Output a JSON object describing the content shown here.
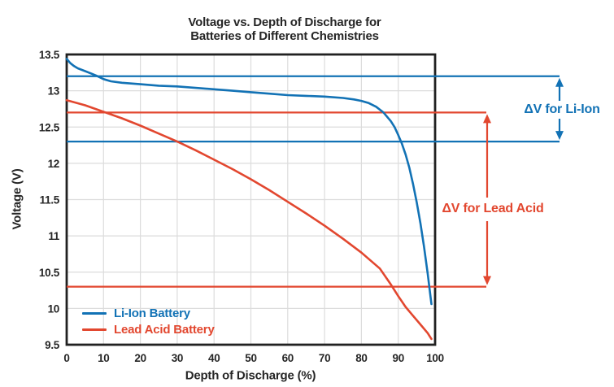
{
  "header": {
    "title_line1": "Voltage vs. Depth of Discharge for",
    "title_line2": "Batteries of Different Chemistries"
  },
  "colors": {
    "li_ion_blue": "#1272B5",
    "lead_acid_red": "#E2472F",
    "grid": "#DCDCDC",
    "axis": "#212121",
    "text": "#262626"
  },
  "chart_data": {
    "type": "line",
    "title": "Voltage vs. Depth of Discharge for Batteries of Different Chemistries",
    "xlabel": "Depth of Discharge (%)",
    "ylabel": "Voltage (V)",
    "xlim": [
      0,
      100
    ],
    "ylim": [
      9.5,
      13.5
    ],
    "xticks": [
      0,
      10,
      20,
      30,
      40,
      50,
      60,
      70,
      80,
      90,
      100
    ],
    "yticks": [
      9.5,
      10,
      10.5,
      11,
      11.5,
      12,
      12.5,
      13,
      13.5
    ],
    "grid": true,
    "legend_position": "lower-left",
    "series": [
      {
        "name": "Li-Ion Battery",
        "color": "#1272B5",
        "points": [
          [
            0,
            13.44
          ],
          [
            1,
            13.38
          ],
          [
            2,
            13.34
          ],
          [
            3,
            13.31
          ],
          [
            5,
            13.27
          ],
          [
            7,
            13.23
          ],
          [
            8,
            13.21
          ],
          [
            10,
            13.16
          ],
          [
            12,
            13.13
          ],
          [
            15,
            13.11
          ],
          [
            20,
            13.09
          ],
          [
            25,
            13.07
          ],
          [
            30,
            13.06
          ],
          [
            35,
            13.04
          ],
          [
            40,
            13.02
          ],
          [
            45,
            13.0
          ],
          [
            50,
            12.98
          ],
          [
            55,
            12.96
          ],
          [
            60,
            12.94
          ],
          [
            65,
            12.93
          ],
          [
            70,
            12.92
          ],
          [
            75,
            12.9
          ],
          [
            78,
            12.88
          ],
          [
            80,
            12.86
          ],
          [
            82,
            12.83
          ],
          [
            84,
            12.78
          ],
          [
            86,
            12.7
          ],
          [
            88,
            12.58
          ],
          [
            89,
            12.5
          ],
          [
            90,
            12.39
          ],
          [
            91,
            12.27
          ],
          [
            92,
            12.12
          ],
          [
            93,
            11.94
          ],
          [
            94,
            11.72
          ],
          [
            95,
            11.47
          ],
          [
            96,
            11.18
          ],
          [
            97,
            10.85
          ],
          [
            98,
            10.48
          ],
          [
            99,
            10.06
          ]
        ]
      },
      {
        "name": "Lead Acid Battery",
        "color": "#E2472F",
        "points": [
          [
            0,
            12.87
          ],
          [
            5,
            12.8
          ],
          [
            10,
            12.71
          ],
          [
            15,
            12.62
          ],
          [
            20,
            12.52
          ],
          [
            25,
            12.41
          ],
          [
            30,
            12.3
          ],
          [
            35,
            12.18
          ],
          [
            40,
            12.05
          ],
          [
            45,
            11.92
          ],
          [
            50,
            11.78
          ],
          [
            55,
            11.63
          ],
          [
            60,
            11.47
          ],
          [
            65,
            11.31
          ],
          [
            70,
            11.14
          ],
          [
            75,
            10.96
          ],
          [
            80,
            10.77
          ],
          [
            85,
            10.55
          ],
          [
            88,
            10.33
          ],
          [
            90,
            10.17
          ],
          [
            92,
            10.02
          ],
          [
            94,
            9.9
          ],
          [
            96,
            9.78
          ],
          [
            98,
            9.66
          ],
          [
            99,
            9.58
          ]
        ]
      }
    ],
    "reference_lines": [
      {
        "id": "li-ion-upper",
        "value": 13.2,
        "color": "#1272B5"
      },
      {
        "id": "li-ion-lower",
        "value": 12.3,
        "color": "#1272B5"
      },
      {
        "id": "lead-acid-upper",
        "value": 12.7,
        "color": "#E2472F"
      },
      {
        "id": "lead-acid-lower",
        "value": 10.3,
        "color": "#E2472F"
      }
    ],
    "annotations": [
      {
        "text": "ΔV for Li-Ion",
        "color": "#1272B5",
        "upper": 13.2,
        "lower": 12.3
      },
      {
        "text": "ΔV for Lead Acid",
        "color": "#E2472F",
        "upper": 12.7,
        "lower": 10.3
      }
    ]
  }
}
